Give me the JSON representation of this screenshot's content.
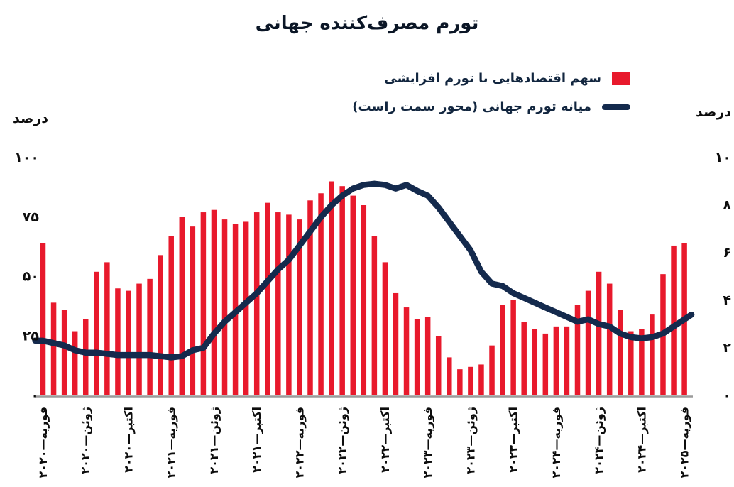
{
  "title": "تورم مصرف‌کننده جهانی",
  "legend": {
    "items": [
      {
        "label": "سهم اقتصادهایی با تورم افزایشی",
        "marker": "square",
        "color": "#e8192c"
      },
      {
        "label": "میانه تورم جهانی (محور سمت راست)",
        "marker": "line",
        "color": "#142a4d"
      }
    ]
  },
  "axes": {
    "left_unit": "درصد",
    "right_unit": "درصد"
  },
  "chart_data": {
    "type": "bar",
    "title": "تورم مصرف‌کننده جهانی",
    "categories": [
      "2020-02",
      "2020-03",
      "2020-04",
      "2020-05",
      "2020-06",
      "2020-07",
      "2020-08",
      "2020-09",
      "2020-10",
      "2020-11",
      "2020-12",
      "2021-01",
      "2021-02",
      "2021-03",
      "2021-04",
      "2021-05",
      "2021-06",
      "2021-07",
      "2021-08",
      "2021-09",
      "2021-10",
      "2021-11",
      "2021-12",
      "2022-01",
      "2022-02",
      "2022-03",
      "2022-04",
      "2022-05",
      "2022-06",
      "2022-07",
      "2022-08",
      "2022-09",
      "2022-10",
      "2022-11",
      "2022-12",
      "2023-01",
      "2023-02",
      "2023-03",
      "2023-04",
      "2023-05",
      "2023-06",
      "2023-07",
      "2023-08",
      "2023-09",
      "2023-10",
      "2023-11",
      "2023-12",
      "2024-01",
      "2024-02",
      "2024-03",
      "2024-04",
      "2024-05",
      "2024-06",
      "2024-07",
      "2024-08",
      "2024-09",
      "2024-10",
      "2024-11",
      "2024-12",
      "2025-01",
      "2025-02"
    ],
    "series": [
      {
        "name": "سهم اقتصادهایی با تورم افزایشی",
        "type": "bar",
        "axis": "left",
        "color": "#e8192c",
        "values": [
          64,
          39,
          36,
          27,
          32,
          52,
          56,
          45,
          44,
          47,
          49,
          59,
          67,
          75,
          71,
          77,
          78,
          74,
          72,
          73,
          77,
          81,
          77,
          76,
          74,
          82,
          85,
          90,
          88,
          84,
          80,
          67,
          56,
          43,
          37,
          32,
          33,
          25,
          16,
          11,
          12,
          13,
          21,
          38,
          40,
          31,
          28,
          26,
          29,
          29,
          38,
          44,
          52,
          47,
          36,
          27,
          28,
          34,
          51,
          63,
          64
        ]
      },
      {
        "name": "میانه تورم جهانی (محور سمت راست)",
        "type": "line",
        "axis": "right",
        "color": "#142a4d",
        "values": [
          2.3,
          2.2,
          2.1,
          1.9,
          1.8,
          1.8,
          1.75,
          1.7,
          1.7,
          1.7,
          1.7,
          1.65,
          1.6,
          1.65,
          1.9,
          2.0,
          2.6,
          3.1,
          3.5,
          3.9,
          4.3,
          4.8,
          5.3,
          5.7,
          6.3,
          6.9,
          7.5,
          8.0,
          8.4,
          8.7,
          8.85,
          8.9,
          8.85,
          8.7,
          8.85,
          8.6,
          8.4,
          7.9,
          7.3,
          6.7,
          6.1,
          5.2,
          4.7,
          4.6,
          4.3,
          4.1,
          3.9,
          3.7,
          3.5,
          3.3,
          3.1,
          3.2,
          3.0,
          2.9,
          2.6,
          2.45,
          2.4,
          2.45,
          2.6,
          2.9,
          3.2
        ]
      }
    ],
    "left_axis": {
      "label": "درصد",
      "range": [
        0,
        100
      ],
      "tick_values": [
        100,
        75,
        50,
        25,
        0
      ],
      "tick_labels": [
        "۱۰۰",
        "۷۵",
        "۵۰",
        "۲۵",
        "۰"
      ]
    },
    "right_axis": {
      "label": "درصد",
      "range": [
        0,
        10
      ],
      "tick_values": [
        10,
        8,
        6,
        4,
        2,
        0
      ],
      "tick_labels": [
        "۱۰",
        "۸",
        "۶",
        "۴",
        "۲",
        "۰"
      ]
    },
    "x_tick_indices": [
      0,
      4,
      8,
      12,
      16,
      20,
      24,
      28,
      32,
      36,
      40,
      44,
      48,
      52,
      56,
      60
    ],
    "x_tick_labels": [
      "فوریه—۲۰۲۰",
      "ژوئن—۲۰۲۰",
      "اکتبر—۲۰۲۰",
      "فوریه—۲۰۲۱",
      "ژوئن—۲۰۲۱",
      "اکتبر—۲۰۲۱",
      "فوریه—۲۰۲۲",
      "ژوئن—۲۰۲۲",
      "اکتبر—۲۰۲۲",
      "فوریه—۲۰۲۳",
      "ژوئن—۲۰۲۳",
      "اکتبر—۲۰۲۳",
      "فوریه—۲۰۲۴",
      "ژوئن—۲۰۲۴",
      "اکتبر—۲۰۲۴",
      "فوریه—۲۰۲۵"
    ],
    "grid": false,
    "legend_position": "top-right",
    "baseline_color": "#9b9b9b",
    "text_color": "#0d0d0d"
  }
}
